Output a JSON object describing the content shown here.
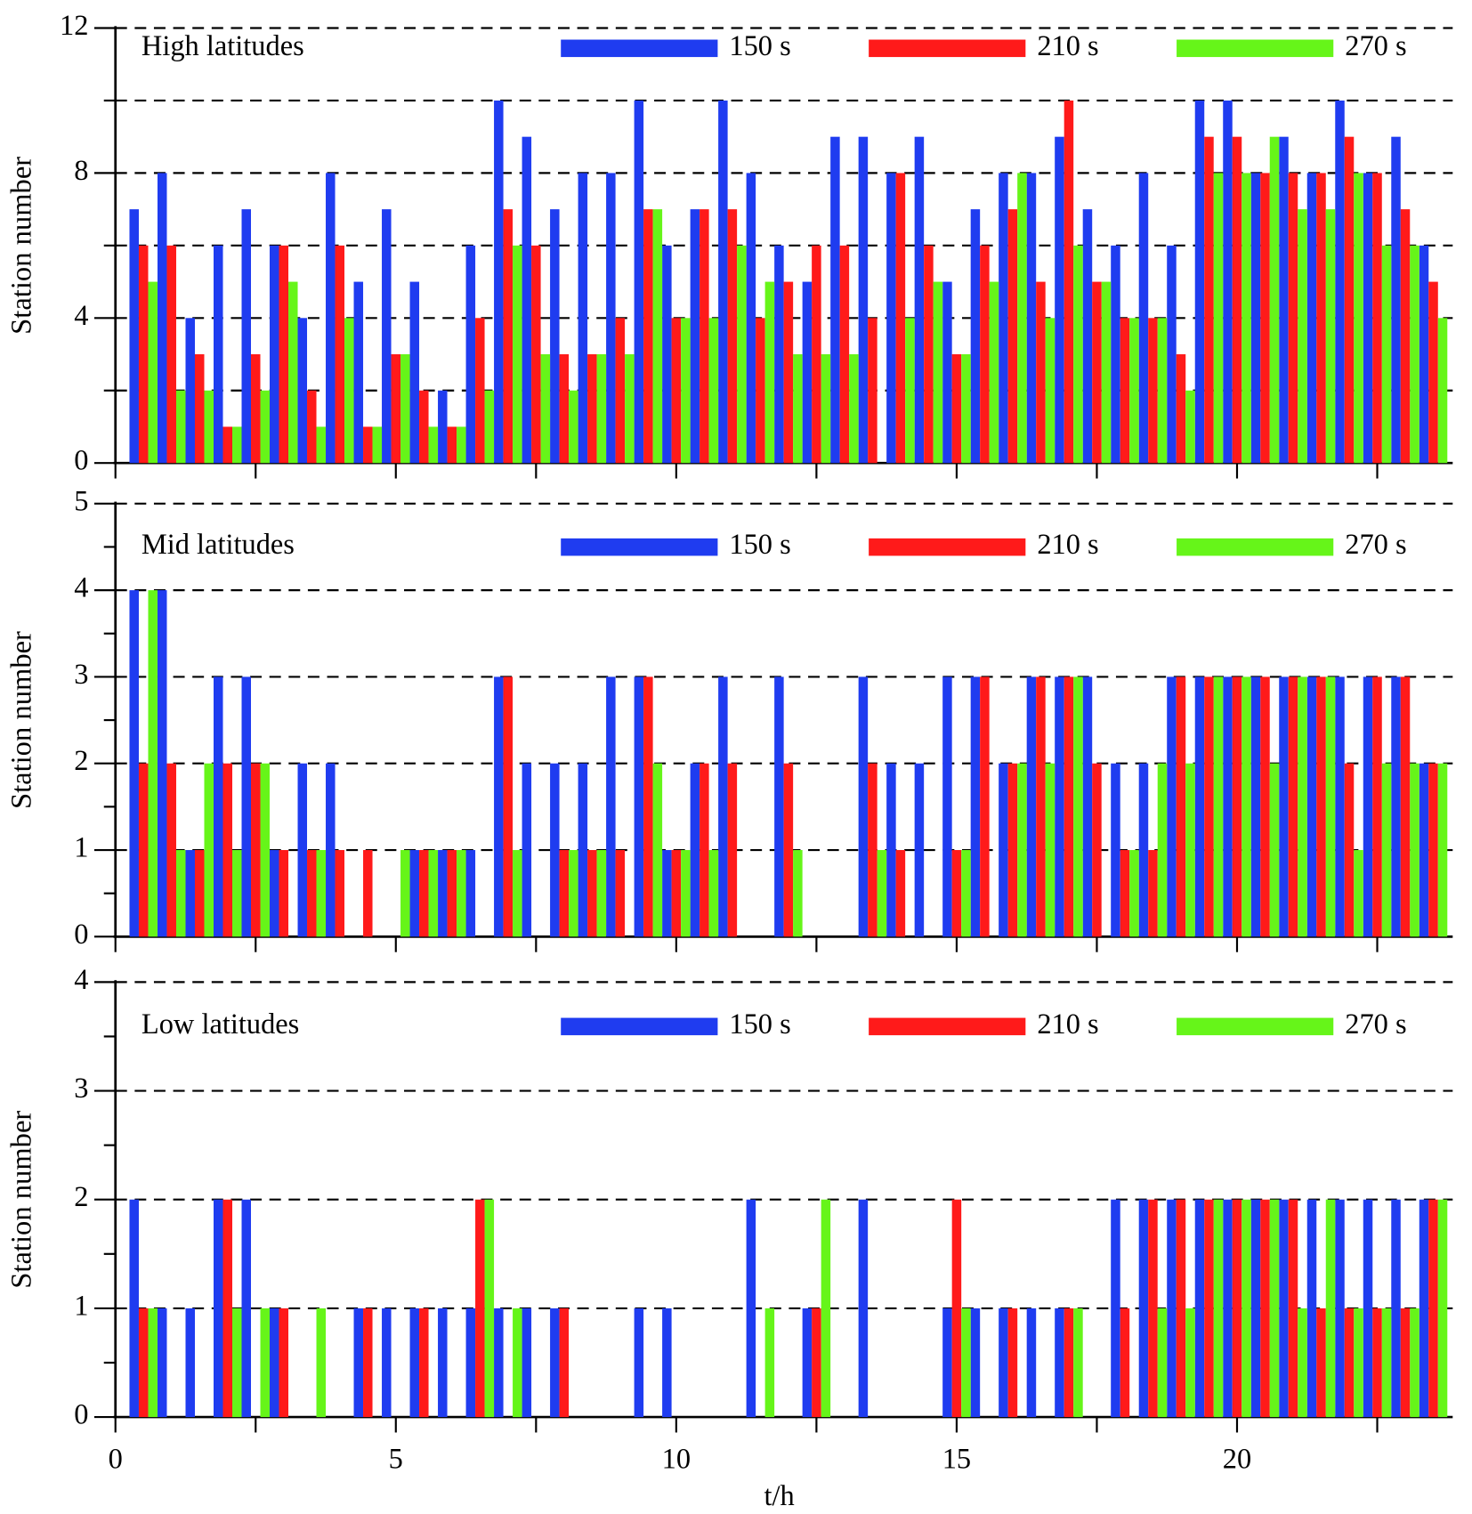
{
  "chart_data": [
    {
      "type": "bar",
      "title": "High latitudes",
      "ylabel": "Station number",
      "x": [
        0.5,
        1,
        1.5,
        2,
        2.5,
        3,
        3.5,
        4,
        4.5,
        5,
        5.5,
        6,
        6.5,
        7,
        7.5,
        8,
        8.5,
        9,
        9.5,
        10,
        10.5,
        11,
        11.5,
        12,
        12.5,
        13,
        13.5,
        14,
        14.5,
        15,
        15.5,
        16,
        16.5,
        17,
        17.5,
        18,
        18.5,
        19,
        19.5,
        20,
        20.5,
        21,
        21.5,
        22,
        22.5,
        23,
        23.5
      ],
      "series": [
        {
          "name": "150 s",
          "color": "#1f3cf0",
          "values": [
            7,
            8,
            4,
            6,
            7,
            6,
            4,
            8,
            5,
            7,
            5,
            2,
            6,
            10,
            9,
            7,
            8,
            8,
            10,
            6,
            7,
            10,
            8,
            6,
            5,
            9,
            9,
            8,
            9,
            5,
            7,
            8,
            8,
            9,
            7,
            6,
            8,
            6,
            10,
            10,
            8,
            9,
            8,
            10,
            8,
            9,
            6
          ]
        },
        {
          "name": "210 s",
          "color": "#ff1a1a",
          "values": [
            6,
            6,
            3,
            1,
            3,
            6,
            2,
            6,
            1,
            3,
            2,
            1,
            4,
            7,
            6,
            3,
            3,
            4,
            7,
            4,
            7,
            7,
            4,
            5,
            6,
            6,
            4,
            8,
            6,
            3,
            6,
            7,
            5,
            10,
            5,
            4,
            4,
            3,
            9,
            9,
            8,
            8,
            8,
            9,
            8,
            7,
            5
          ]
        },
        {
          "name": "270 s",
          "color": "#66f519",
          "values": [
            5,
            2,
            2,
            1,
            2,
            5,
            1,
            4,
            1,
            3,
            1,
            1,
            2,
            6,
            3,
            2,
            3,
            3,
            7,
            4,
            4,
            6,
            5,
            3,
            3,
            3,
            0,
            4,
            5,
            3,
            5,
            8,
            4,
            6,
            5,
            4,
            4,
            2,
            8,
            8,
            9,
            7,
            7,
            8,
            6,
            6,
            4
          ]
        }
      ],
      "xlim": [
        0,
        24
      ],
      "xticks": [
        0,
        5,
        10,
        15,
        20
      ],
      "show_xtick_labels": false,
      "ylim": [
        0,
        12
      ],
      "yticks": [
        0,
        4,
        8,
        12
      ],
      "grid": true,
      "grid_minor": true
    },
    {
      "type": "bar",
      "title": "Mid latitudes",
      "ylabel": "Station number",
      "x": [
        0.5,
        1,
        1.5,
        2,
        2.5,
        3,
        3.5,
        4,
        4.5,
        5,
        5.5,
        6,
        6.5,
        7,
        7.5,
        8,
        8.5,
        9,
        9.5,
        10,
        10.5,
        11,
        11.5,
        12,
        12.5,
        13,
        13.5,
        14,
        14.5,
        15,
        15.5,
        16,
        16.5,
        17,
        17.5,
        18,
        18.5,
        19,
        19.5,
        20,
        20.5,
        21,
        21.5,
        22,
        22.5,
        23,
        23.5
      ],
      "series": [
        {
          "name": "150 s",
          "color": "#1f3cf0",
          "values": [
            4,
            4,
            1,
            3,
            3,
            1,
            2,
            2,
            0,
            0,
            1,
            1,
            1,
            3,
            2,
            2,
            2,
            3,
            3,
            1,
            2,
            3,
            0,
            3,
            0,
            0,
            3,
            2,
            2,
            3,
            3,
            2,
            3,
            3,
            3,
            2,
            2,
            3,
            3,
            3,
            3,
            3,
            3,
            3,
            3,
            3,
            2
          ]
        },
        {
          "name": "210 s",
          "color": "#ff1a1a",
          "values": [
            2,
            2,
            1,
            2,
            2,
            1,
            1,
            1,
            1,
            0,
            1,
            1,
            0,
            3,
            0,
            1,
            1,
            1,
            3,
            1,
            2,
            2,
            0,
            2,
            0,
            0,
            2,
            1,
            0,
            1,
            3,
            2,
            3,
            3,
            2,
            1,
            1,
            3,
            3,
            3,
            3,
            3,
            3,
            2,
            3,
            3,
            2
          ]
        },
        {
          "name": "270 s",
          "color": "#66f519",
          "values": [
            4,
            1,
            2,
            1,
            2,
            0,
            1,
            0,
            0,
            1,
            1,
            1,
            0,
            1,
            0,
            1,
            1,
            0,
            2,
            1,
            1,
            0,
            0,
            1,
            0,
            0,
            1,
            0,
            0,
            1,
            0,
            2,
            2,
            3,
            0,
            1,
            2,
            2,
            3,
            3,
            2,
            3,
            3,
            1,
            2,
            2,
            2
          ]
        }
      ],
      "xlim": [
        0,
        24
      ],
      "xticks": [
        0,
        5,
        10,
        15,
        20
      ],
      "show_xtick_labels": false,
      "ylim": [
        0,
        5
      ],
      "yticks": [
        0,
        1,
        2,
        3,
        4,
        5
      ],
      "grid": true,
      "grid_minor": false
    },
    {
      "type": "bar",
      "title": "Low latitudes",
      "ylabel": "Station number",
      "xlabel": "t/h",
      "x": [
        0.5,
        1,
        1.5,
        2,
        2.5,
        3,
        3.5,
        4,
        4.5,
        5,
        5.5,
        6,
        6.5,
        7,
        7.5,
        8,
        8.5,
        9,
        9.5,
        10,
        10.5,
        11,
        11.5,
        12,
        12.5,
        13,
        13.5,
        14,
        14.5,
        15,
        15.5,
        16,
        16.5,
        17,
        17.5,
        18,
        18.5,
        19,
        19.5,
        20,
        20.5,
        21,
        21.5,
        22,
        22.5,
        23,
        23.5
      ],
      "series": [
        {
          "name": "150 s",
          "color": "#1f3cf0",
          "values": [
            2,
            1,
            1,
            2,
            2,
            1,
            0,
            0,
            1,
            1,
            1,
            1,
            1,
            1,
            1,
            1,
            0,
            0,
            1,
            1,
            0,
            0,
            2,
            0,
            1,
            0,
            2,
            0,
            0,
            1,
            1,
            1,
            1,
            1,
            0,
            2,
            2,
            2,
            2,
            2,
            2,
            2,
            2,
            2,
            2,
            2,
            2
          ]
        },
        {
          "name": "210 s",
          "color": "#ff1a1a",
          "values": [
            1,
            0,
            0,
            2,
            0,
            1,
            0,
            0,
            1,
            0,
            1,
            0,
            2,
            0,
            0,
            1,
            0,
            0,
            0,
            0,
            0,
            0,
            0,
            0,
            1,
            0,
            0,
            0,
            0,
            2,
            0,
            1,
            0,
            1,
            0,
            1,
            2,
            2,
            2,
            2,
            2,
            2,
            1,
            1,
            1,
            1,
            2
          ]
        },
        {
          "name": "270 s",
          "color": "#66f519",
          "values": [
            1,
            0,
            0,
            1,
            1,
            0,
            1,
            0,
            0,
            0,
            0,
            0,
            2,
            1,
            0,
            0,
            0,
            0,
            0,
            0,
            0,
            0,
            1,
            0,
            2,
            0,
            0,
            0,
            0,
            1,
            0,
            0,
            0,
            1,
            0,
            0,
            1,
            1,
            2,
            2,
            2,
            1,
            2,
            1,
            1,
            1,
            2
          ]
        }
      ],
      "xlim": [
        0,
        24
      ],
      "xticks": [
        0,
        5,
        10,
        15,
        20
      ],
      "show_xtick_labels": true,
      "ylim": [
        0,
        4
      ],
      "yticks": [
        0,
        1,
        2,
        3,
        4
      ],
      "grid": true,
      "grid_minor": false
    }
  ]
}
